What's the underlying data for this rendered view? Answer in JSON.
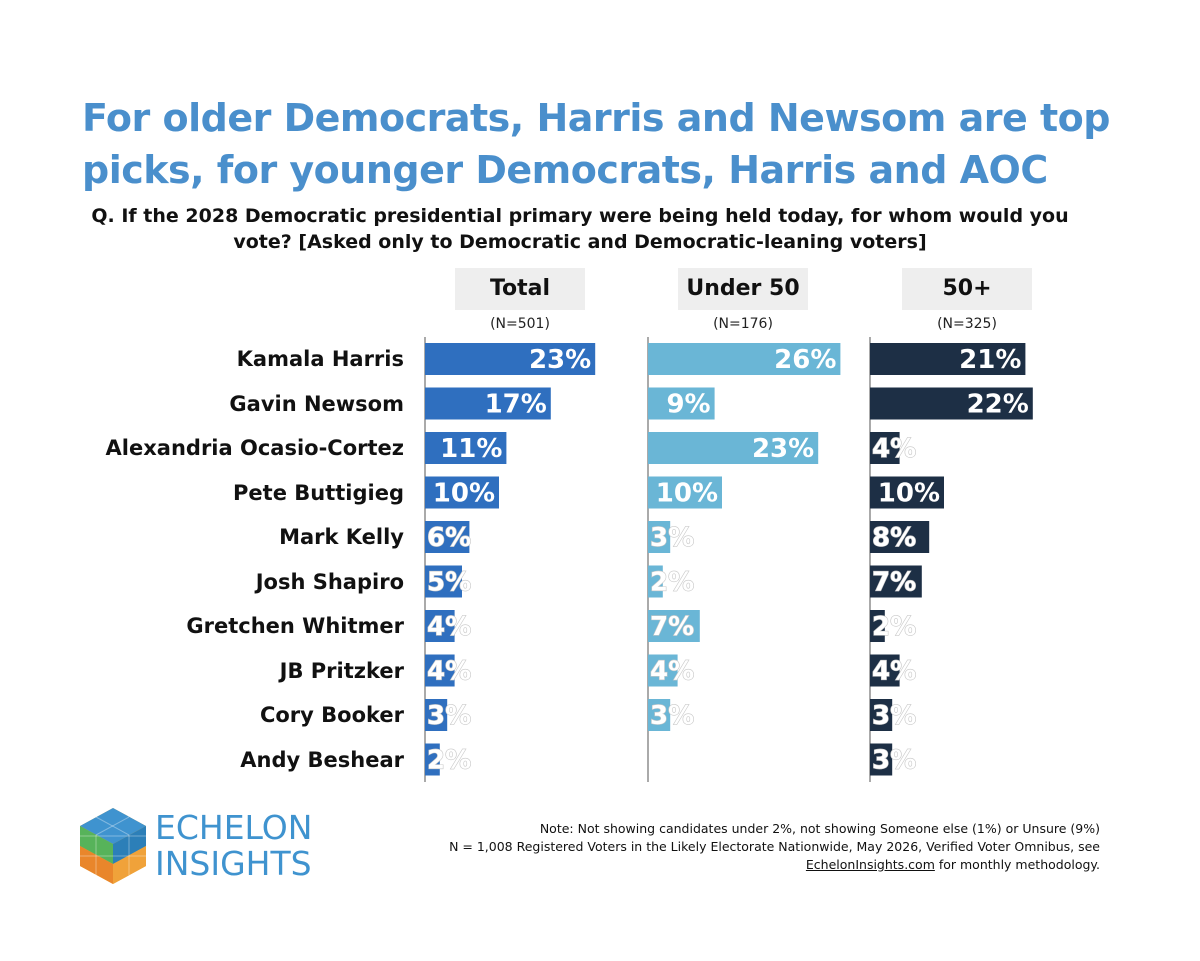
{
  "colors": {
    "title": "#4a8fcc",
    "total": "#2f6fbf",
    "under50": "#6ab6d6",
    "over50": "#1d2f45",
    "header_bg": "#eeeeee",
    "logo_text": "#3f93cf"
  },
  "title": "For older Democrats, Harris and Newsom are top picks, for younger Democrats, Harris and AOC",
  "question": "Q. If the 2028 Democratic presidential primary were being held today, for whom would you vote? [Asked only to Democratic and Democratic-leaning voters]",
  "columns": [
    {
      "label": "Total",
      "n": "(N=501)"
    },
    {
      "label": "Under 50",
      "n": "(N=176)"
    },
    {
      "label": "50+",
      "n": "(N=325)"
    }
  ],
  "chart_data": {
    "type": "bar",
    "orientation": "horizontal",
    "categories": [
      "Kamala Harris",
      "Gavin Newsom",
      "Alexandria Ocasio-Cortez",
      "Pete Buttigieg",
      "Mark Kelly",
      "Josh Shapiro",
      "Gretchen Whitmer",
      "JB Pritzker",
      "Cory Booker",
      "Andy Beshear"
    ],
    "series": [
      {
        "name": "Total",
        "values": [
          23,
          17,
          11,
          10,
          6,
          5,
          4,
          4,
          3,
          2
        ],
        "labels": [
          "23%",
          "17%",
          "11%",
          "10%",
          "6%",
          "5%",
          "4%",
          "4%",
          "3%",
          "2%"
        ]
      },
      {
        "name": "Under 50",
        "values": [
          26,
          9,
          23,
          10,
          3,
          2,
          7,
          4,
          3,
          null
        ],
        "labels": [
          "26%",
          "9%",
          "23%",
          "10%",
          "3%",
          "2%",
          "7%",
          "4%",
          "3%",
          ""
        ]
      },
      {
        "name": "50+",
        "values": [
          21,
          22,
          4,
          10,
          8,
          7,
          2,
          4,
          3,
          3
        ],
        "labels": [
          "21%",
          "22%",
          "4%",
          "10%",
          "8%",
          "7%",
          "2%",
          "4%",
          "3%",
          "3%"
        ]
      }
    ],
    "unit": "%",
    "grid": false
  },
  "logo": {
    "line1": "ECHELON",
    "line2": "INSIGHTS"
  },
  "note": {
    "line1": "Note: Not showing candidates under 2%, not showing Someone else (1%) or Unsure (9%)",
    "line2": "N = 1,008 Registered Voters in the Likely Electorate Nationwide, May 2026, Verified Voter Omnibus, see",
    "link": "EchelonInsights.com",
    "line3_rest": " for monthly methodology."
  }
}
